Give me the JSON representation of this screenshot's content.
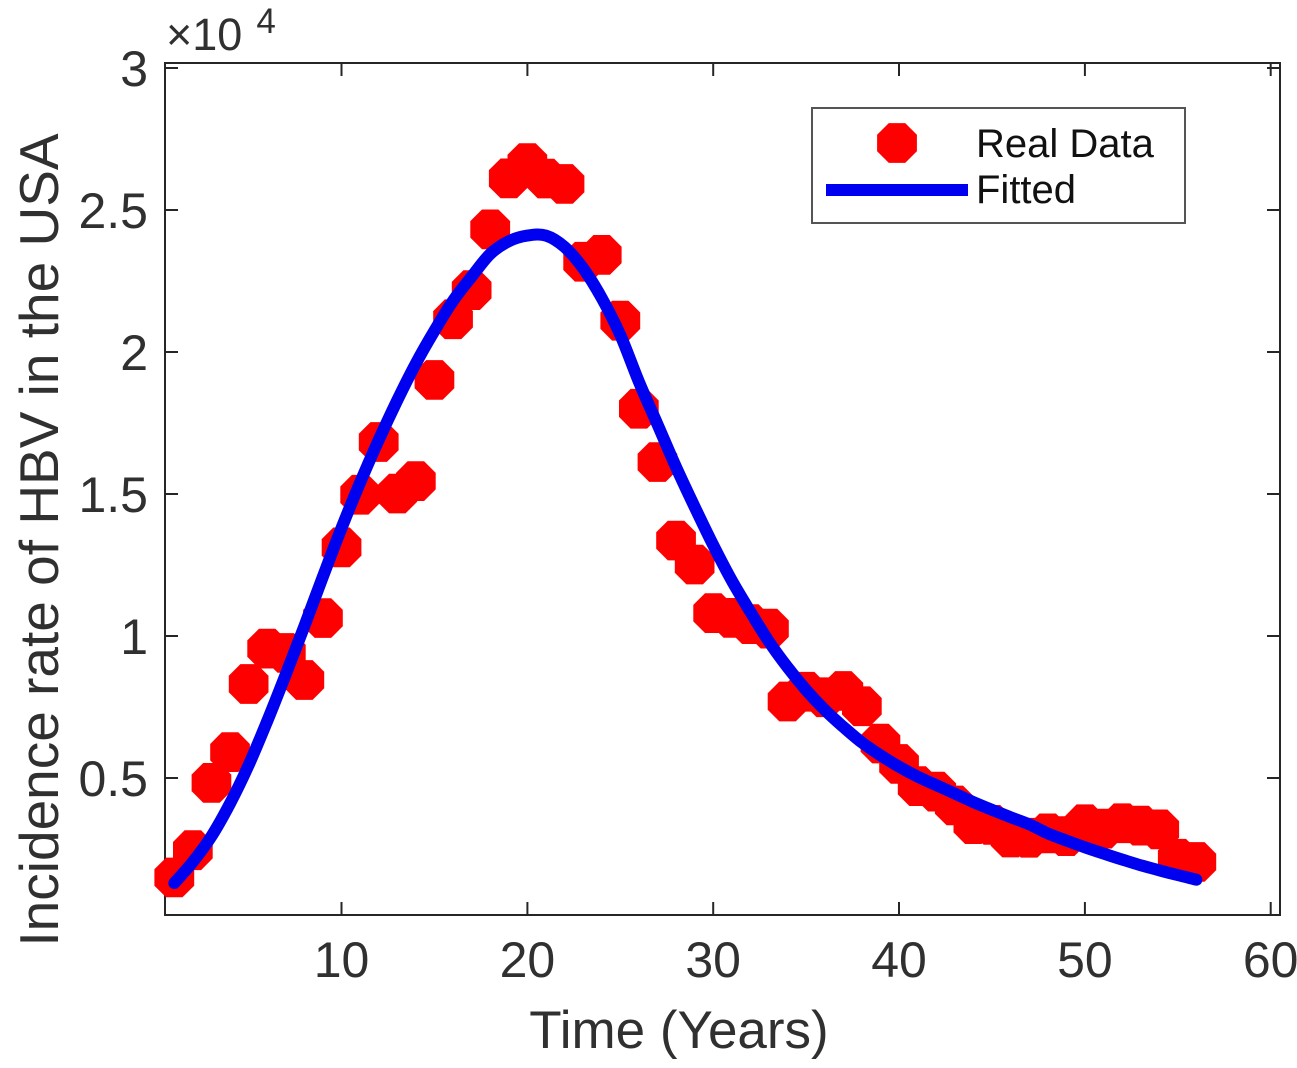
{
  "chart": {
    "x_label": "Time (Years)",
    "y_label": "Incidence rate of HBV in the USA",
    "y_exponent": {
      "base": "×10",
      "power": "4"
    },
    "legend": {
      "real_data_label": "Real Data",
      "fitted_label": "Fitted"
    }
  },
  "colors": {
    "real_data": "#ff0000",
    "fitted": "#0000f0",
    "axis": "#262626",
    "tick_text": "#303030",
    "legend_border": "#555555",
    "background": "#ffffff"
  },
  "chart_data": {
    "type": "scatter",
    "title": "",
    "xlabel": "Time (Years)",
    "ylabel": "Incidence rate of HBV in the USA",
    "y_scale_note": "y values are absolute counts; axis labeled in units of 10^4",
    "xlim": [
      0.5,
      60.5
    ],
    "ylim": [
      0,
      30200
    ],
    "x_ticks": [
      10,
      20,
      30,
      40,
      50,
      60
    ],
    "y_ticks": [
      5000,
      10000,
      15000,
      20000,
      25000,
      30000
    ],
    "y_tick_labels": [
      "0.5",
      "1",
      "1.5",
      "2",
      "2.5",
      "3"
    ],
    "grid": false,
    "legend_position": "upper right",
    "x": [
      1,
      2,
      3,
      4,
      5,
      6,
      7,
      8,
      9,
      10,
      11,
      12,
      13,
      14,
      15,
      16,
      17,
      18,
      19,
      20,
      21,
      22,
      23,
      24,
      25,
      26,
      27,
      28,
      29,
      30,
      31,
      32,
      33,
      34,
      35,
      36,
      37,
      38,
      39,
      40,
      41,
      42,
      43,
      44,
      45,
      46,
      47,
      48,
      49,
      50,
      51,
      52,
      53,
      54,
      55,
      56
    ],
    "series": [
      {
        "name": "Real Data",
        "type": "scatter",
        "marker": "octagon",
        "color": "#ff0000",
        "marker_radius": 21.5,
        "values": [
          1497,
          2458,
          4829,
          5909,
          8310,
          9556,
          9402,
          8451,
          10631,
          13121,
          14973,
          16831,
          15016,
          15452,
          19015,
          21152,
          22177,
          24318,
          26115,
          26654,
          26107,
          25916,
          23177,
          23419,
          21102,
          18003,
          16126,
          13361,
          12517,
          10805,
          10637,
          10416,
          10258,
          7694,
          8036,
          7844,
          8064,
          7526,
          6212,
          5494,
          4713,
          4519,
          4033,
          3374,
          3350,
          2903,
          2895,
          3050,
          2953,
          3370,
          3218,
          3407,
          3322,
          3192,
          2157,
          2045
        ]
      },
      {
        "name": "Fitted",
        "type": "line",
        "color": "#0000f0",
        "line_width": 12,
        "values": [
          1300,
          2050,
          2950,
          4100,
          5450,
          7000,
          8650,
          10350,
          12100,
          13800,
          15400,
          16900,
          18300,
          19600,
          20750,
          21800,
          22650,
          23450,
          23900,
          24100,
          24100,
          23700,
          22950,
          21900,
          20600,
          18950,
          17450,
          15950,
          14550,
          13200,
          11950,
          10850,
          9800,
          8900,
          8100,
          7400,
          6800,
          6250,
          5800,
          5400,
          5050,
          4750,
          4450,
          4150,
          3880,
          3620,
          3370,
          3050,
          2800,
          2560,
          2340,
          2130,
          1930,
          1750,
          1580,
          1420
        ]
      }
    ]
  }
}
